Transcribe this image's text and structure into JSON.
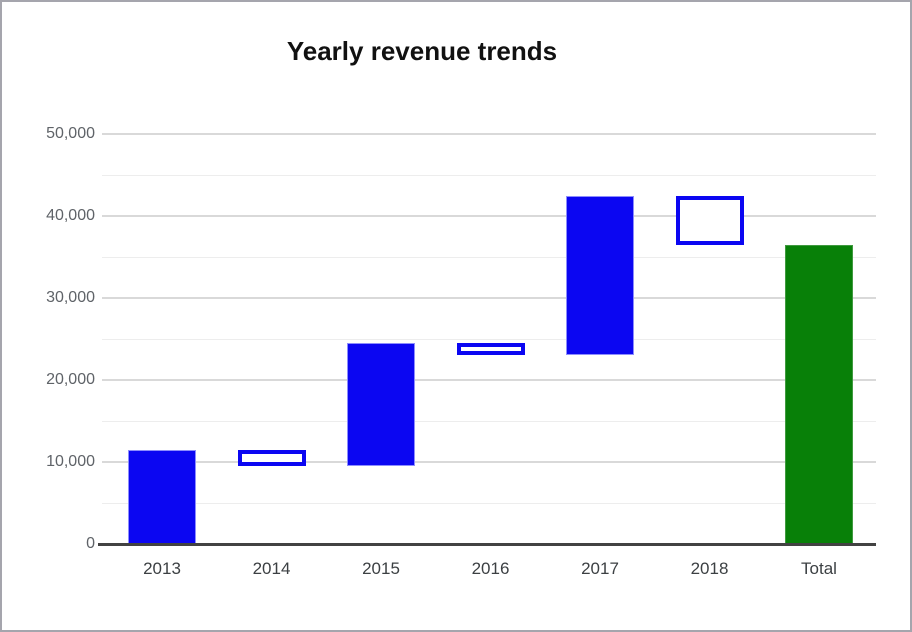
{
  "chart_data": {
    "type": "waterfall-bar",
    "title": "Yearly revenue trends",
    "categories": [
      "2013",
      "2014",
      "2015",
      "2016",
      "2017",
      "2018",
      "Total"
    ],
    "bars": [
      {
        "label": "2013",
        "start": 0,
        "end": 11500,
        "style": "rise"
      },
      {
        "label": "2014",
        "start": 11500,
        "end": 9500,
        "style": "fall"
      },
      {
        "label": "2015",
        "start": 9500,
        "end": 24500,
        "style": "rise"
      },
      {
        "label": "2016",
        "start": 24500,
        "end": 23000,
        "style": "fall"
      },
      {
        "label": "2017",
        "start": 23000,
        "end": 42500,
        "style": "rise"
      },
      {
        "label": "2018",
        "start": 42500,
        "end": 36500,
        "style": "fall"
      },
      {
        "label": "Total",
        "start": 0,
        "end": 36500,
        "style": "total"
      }
    ],
    "y_axis": {
      "min": 0,
      "max": 50000,
      "major_step": 10000,
      "minor_step": 5000,
      "tick_labels": [
        "0",
        "10,000",
        "20,000",
        "30,000",
        "40,000",
        "50,000"
      ]
    },
    "xlabel": "",
    "ylabel": "",
    "legend": "none",
    "grid": true,
    "colors": {
      "rise_fill": "#0b06f2",
      "rise_edge": "#8d8dfd",
      "fall_fill": "#ffffff",
      "fall_outline": "#0b06f2",
      "total_fill": "#088008",
      "total_edge": "#3f9a3f",
      "major_grid": "#d9d9d9",
      "minor_grid": "#ededed",
      "zero_axis": "#424242",
      "y_axis_text": "#5f6368",
      "x_axis_text": "#3c4043",
      "title_text": "#111111",
      "frame_border": "#a5a5ad"
    }
  }
}
